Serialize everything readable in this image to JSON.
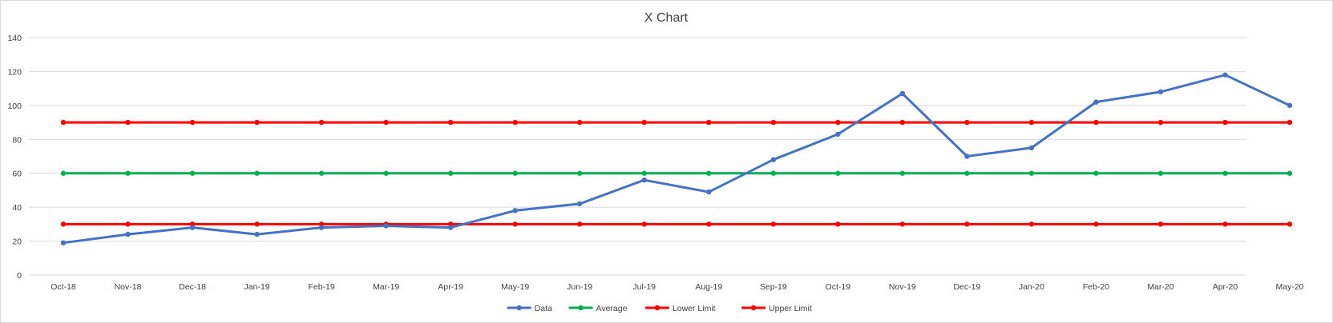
{
  "chart_data": {
    "type": "line",
    "title": "X Chart",
    "xlabel": "",
    "ylabel": "",
    "ylim": [
      0,
      140
    ],
    "yticks": [
      0,
      20,
      40,
      60,
      80,
      100,
      120,
      140
    ],
    "grid": "horizontal",
    "legend_position": "bottom",
    "categories": [
      "Oct-18",
      "Nov-18",
      "Dec-18",
      "Jan-19",
      "Feb-19",
      "Mar-19",
      "Apr-19",
      "May-19",
      "Jun-19",
      "Jul-19",
      "Aug-19",
      "Sep-19",
      "Oct-19",
      "Nov-19",
      "Dec-19",
      "Jan-20",
      "Feb-20",
      "Mar-20",
      "Apr-20",
      "May-20"
    ],
    "series": [
      {
        "name": "Data",
        "color": "#4472c4",
        "values": [
          19,
          24,
          28,
          24,
          28,
          29,
          28,
          38,
          42,
          56,
          49,
          68,
          83,
          107,
          70,
          75,
          102,
          108,
          118,
          100
        ]
      },
      {
        "name": "Average",
        "color": "#00b050",
        "values": [
          60,
          60,
          60,
          60,
          60,
          60,
          60,
          60,
          60,
          60,
          60,
          60,
          60,
          60,
          60,
          60,
          60,
          60,
          60,
          60
        ]
      },
      {
        "name": "Lower Limit",
        "color": "#ff0000",
        "values": [
          30,
          30,
          30,
          30,
          30,
          30,
          30,
          30,
          30,
          30,
          30,
          30,
          30,
          30,
          30,
          30,
          30,
          30,
          30,
          30
        ]
      },
      {
        "name": "Upper Limit",
        "color": "#ff0000",
        "values": [
          90,
          90,
          90,
          90,
          90,
          90,
          90,
          90,
          90,
          90,
          90,
          90,
          90,
          90,
          90,
          90,
          90,
          90,
          90,
          90
        ]
      }
    ]
  }
}
